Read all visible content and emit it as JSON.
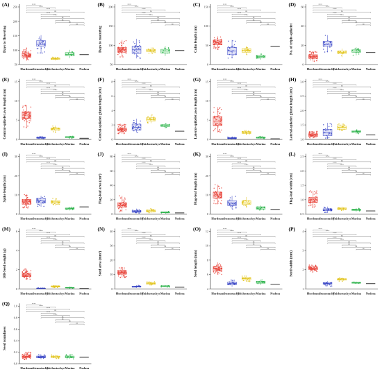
{
  "chart_data": {
    "type": "boxplot-grid",
    "categories": [
      "Hordeum",
      "Stenostachys",
      "Trichostachys",
      "Marina",
      "Nodosa"
    ],
    "group_colors": {
      "Hordeum": "#e8453c",
      "Stenostachys": "#3a47c6",
      "Trichostachys": "#e0c21a",
      "Marina": "#2bb24a",
      "Nodosa": "#555555"
    },
    "box_fill_colors": {
      "Hordeum": "#f7b5b0",
      "Stenostachys": "#c8ccf2",
      "Trichostachys": "#fbf1a8",
      "Marina": "#bfeec8",
      "Nodosa": "#dddddd"
    },
    "significance_labels": [
      "****",
      "***",
      "**",
      "*",
      "ns"
    ],
    "panels": [
      {
        "label": "(A)",
        "ylabel": "Days to flowering",
        "yticks": [
          "50",
          "100",
          "150",
          "200",
          "250"
        ],
        "ylim": [
          50,
          250
        ],
        "values": [
          [
            70,
            90,
            100,
            112,
            140
          ],
          [
            110,
            150,
            160,
            180,
            210
          ],
          [
            72,
            78,
            82,
            86,
            92
          ],
          [
            85,
            98,
            105,
            115,
            130
          ],
          [
            105,
            105,
            105,
            105,
            105
          ]
        ]
      },
      {
        "label": "(B)",
        "ylabel": "Days to maturing",
        "yticks": [
          "50",
          "100",
          "150",
          "200"
        ],
        "ylim": [
          50,
          200
        ],
        "values": [
          [
            80,
            100,
            110,
            120,
            150
          ],
          [
            75,
            95,
            110,
            125,
            155
          ],
          [
            95,
            103,
            107,
            112,
            120
          ],
          [
            85,
            97,
            105,
            112,
            125
          ],
          [
            108,
            108,
            108,
            108,
            108
          ]
        ]
      },
      {
        "label": "(C)",
        "ylabel": "Culm length (cm)",
        "yticks": [
          "0",
          "50",
          "100",
          "150"
        ],
        "ylim": [
          0,
          150
        ],
        "values": [
          [
            60,
            80,
            92,
            100,
            115
          ],
          [
            25,
            40,
            55,
            70,
            100
          ],
          [
            40,
            50,
            58,
            65,
            75
          ],
          [
            20,
            28,
            32,
            38,
            45
          ],
          [
            75,
            75,
            75,
            75,
            75
          ]
        ]
      },
      {
        "label": "(D)",
        "ylabel": "No. of triple-spikelet",
        "yticks": [
          "0",
          "20",
          "40",
          "60"
        ],
        "ylim": [
          0,
          60
        ],
        "values": [
          [
            5,
            10,
            13,
            16,
            22
          ],
          [
            20,
            30,
            33,
            38,
            48
          ],
          [
            12,
            18,
            20,
            22,
            26
          ],
          [
            15,
            20,
            22,
            24,
            28
          ],
          [
            20,
            20,
            20,
            20,
            20
          ]
        ]
      },
      {
        "label": "(E)",
        "ylabel": "Central-spikelet awn length (cm)",
        "yticks": [
          "0",
          "5",
          "10",
          "15"
        ],
        "ylim": [
          0,
          16
        ],
        "values": [
          [
            5,
            9,
            10.5,
            12,
            15
          ],
          [
            0.3,
            0.5,
            0.7,
            0.9,
            1.2
          ],
          [
            3,
            4,
            4.5,
            5,
            6
          ],
          [
            0.5,
            0.8,
            1,
            1.2,
            1.5
          ],
          [
            0.5,
            0.5,
            0.5,
            0.5,
            0.5
          ]
        ]
      },
      {
        "label": "(F)",
        "ylabel": "Central-spikelet glume length (cm)",
        "yticks": [
          "0",
          "2",
          "4",
          "6",
          "8"
        ],
        "ylim": [
          0,
          8
        ],
        "values": [
          [
            1.2,
            1.8,
            2.1,
            2.5,
            3.3
          ],
          [
            1.5,
            2,
            2.6,
            3.3,
            4.5
          ],
          [
            3.5,
            4,
            4.3,
            4.7,
            5.3
          ],
          [
            2.5,
            2.8,
            3,
            3.2,
            3.5
          ],
          [
            1.8,
            1.8,
            1.8,
            1.8,
            1.8
          ]
        ]
      },
      {
        "label": "(G)",
        "ylabel": "Lateral-spikelet awn length (cm)",
        "yticks": [
          "0",
          "5",
          "10",
          "15"
        ],
        "ylim": [
          0,
          16
        ],
        "values": [
          [
            3,
            6,
            8,
            10,
            14
          ],
          [
            0.2,
            0.3,
            0.5,
            0.7,
            1
          ],
          [
            2,
            2.5,
            3,
            3.5,
            4
          ],
          [
            0.3,
            0.5,
            0.8,
            1,
            1.3
          ],
          [
            0.3,
            0.3,
            0.3,
            0.3,
            0.3
          ]
        ]
      },
      {
        "label": "(H)",
        "ylabel": "Lateral-spikelet glume length (cm)",
        "yticks": [
          "1.0",
          "1.5",
          "2.0",
          "2.5",
          "3.0"
        ],
        "ylim": [
          1,
          3
        ],
        "values": [
          [
            1.05,
            1.15,
            1.22,
            1.3,
            1.45
          ],
          [
            1.05,
            1.2,
            1.35,
            1.55,
            1.9
          ],
          [
            1.45,
            1.55,
            1.65,
            1.72,
            1.85
          ],
          [
            1.3,
            1.38,
            1.42,
            1.46,
            1.52
          ],
          [
            1.25,
            1.25,
            1.25,
            1.25,
            1.25
          ]
        ]
      },
      {
        "label": "(I)",
        "ylabel": "Spike length (cm)",
        "yticks": [
          "0",
          "10",
          "20",
          "30"
        ],
        "ylim": [
          0,
          30
        ],
        "values": [
          [
            5,
            8,
            10,
            12,
            16
          ],
          [
            6,
            9,
            11,
            13,
            15
          ],
          [
            7,
            9,
            10,
            11,
            13
          ],
          [
            3,
            4,
            4.5,
            5,
            6
          ],
          [
            6,
            6,
            6,
            6,
            6
          ]
        ]
      },
      {
        "label": "(J)",
        "ylabel": "Flag-leaf area (cm²)",
        "yticks": [
          "0",
          "20",
          "40",
          "60",
          "80"
        ],
        "ylim": [
          0,
          80
        ],
        "values": [
          [
            5,
            15,
            20,
            25,
            40
          ],
          [
            2,
            4,
            6,
            8,
            12
          ],
          [
            3,
            5,
            7,
            9,
            12
          ],
          [
            2,
            3,
            4,
            5,
            6
          ],
          [
            3,
            3,
            3,
            3,
            3
          ]
        ]
      },
      {
        "label": "(K)",
        "ylabel": "Flag-leaf length (cm)",
        "yticks": [
          "0",
          "10",
          "20",
          "30"
        ],
        "ylim": [
          0,
          30
        ],
        "values": [
          [
            8,
            13,
            15,
            18,
            24
          ],
          [
            4,
            7,
            9,
            11,
            15
          ],
          [
            5,
            8,
            9,
            11,
            14
          ],
          [
            3,
            4,
            5,
            6,
            7
          ],
          [
            4,
            4,
            4,
            4,
            4
          ]
        ]
      },
      {
        "label": "(L)",
        "ylabel": "Flag-leaf width (cm)",
        "yticks": [
          "0.5",
          "1.0",
          "1.5",
          "2.0",
          "2.5"
        ],
        "ylim": [
          0.4,
          2.6
        ],
        "values": [
          [
            0.8,
            1.1,
            1.25,
            1.4,
            1.8
          ],
          [
            0.5,
            0.6,
            0.65,
            0.72,
            0.85
          ],
          [
            0.6,
            0.68,
            0.72,
            0.78,
            0.85
          ],
          [
            0.55,
            0.62,
            0.66,
            0.7,
            0.76
          ],
          [
            0.6,
            0.6,
            0.6,
            0.6,
            0.6
          ]
        ]
      },
      {
        "label": "(M)",
        "ylabel": "100-Seed weight (g)",
        "yticks": [
          "0",
          "2",
          "4",
          "6"
        ],
        "ylim": [
          0,
          6
        ],
        "values": [
          [
            1.5,
            2,
            2.3,
            2.6,
            3.3
          ],
          [
            0.05,
            0.08,
            0.1,
            0.13,
            0.18
          ],
          [
            0.2,
            0.3,
            0.4,
            0.5,
            0.6
          ],
          [
            0.1,
            0.15,
            0.2,
            0.25,
            0.3
          ],
          [
            0.1,
            0.1,
            0.1,
            0.1,
            0.1
          ]
        ]
      },
      {
        "label": "(N)",
        "ylabel": "Seed area (mm²)",
        "yticks": [
          "0",
          "10",
          "20",
          "30",
          "40"
        ],
        "ylim": [
          0,
          40
        ],
        "values": [
          [
            12,
            16,
            18,
            20,
            24
          ],
          [
            1,
            2,
            2.5,
            3,
            4
          ],
          [
            4,
            5,
            6,
            7,
            8
          ],
          [
            2,
            2.5,
            3,
            3.5,
            4
          ],
          [
            2,
            2,
            2,
            2,
            2
          ]
        ]
      },
      {
        "label": "(O)",
        "ylabel": "Seed length (mm)",
        "yticks": [
          "4",
          "6",
          "8",
          "10",
          "12"
        ],
        "ylim": [
          3,
          12
        ],
        "values": [
          [
            6.5,
            7.5,
            8,
            8.5,
            9.5
          ],
          [
            3.5,
            4,
            4.3,
            4.7,
            5.3
          ],
          [
            4.8,
            5.2,
            5.5,
            5.8,
            6.3
          ],
          [
            4,
            4.4,
            4.6,
            4.9,
            5.3
          ],
          [
            4.2,
            4.2,
            4.2,
            4.2,
            4.2
          ]
        ]
      },
      {
        "label": "(P)",
        "ylabel": "Seed width (mm)",
        "yticks": [
          "1",
          "2",
          "3",
          "4"
        ],
        "ylim": [
          0.5,
          4.5
        ],
        "values": [
          [
            2.3,
            2.6,
            2.75,
            2.9,
            3.1
          ],
          [
            0.8,
            1,
            1.1,
            1.2,
            1.35
          ],
          [
            1.3,
            1.45,
            1.55,
            1.62,
            1.75
          ],
          [
            1.05,
            1.12,
            1.18,
            1.22,
            1.3
          ],
          [
            1.1,
            1.1,
            1.1,
            1.1,
            1.1
          ]
        ]
      },
      {
        "label": "(Q)",
        "ylabel": "Seed roundness",
        "yticks": [
          "0.0",
          "0.2",
          "0.4",
          "0.6",
          "0.8",
          "1.0"
        ],
        "ylim": [
          0,
          1
        ],
        "values": [
          [
            0.1,
            0.17,
            0.2,
            0.24,
            0.32
          ],
          [
            0.12,
            0.16,
            0.18,
            0.21,
            0.25
          ],
          [
            0.14,
            0.17,
            0.19,
            0.21,
            0.24
          ],
          [
            0.13,
            0.16,
            0.18,
            0.21,
            0.26
          ],
          [
            0.18,
            0.18,
            0.18,
            0.18,
            0.18
          ]
        ]
      }
    ],
    "legend": "none",
    "grid": false
  }
}
